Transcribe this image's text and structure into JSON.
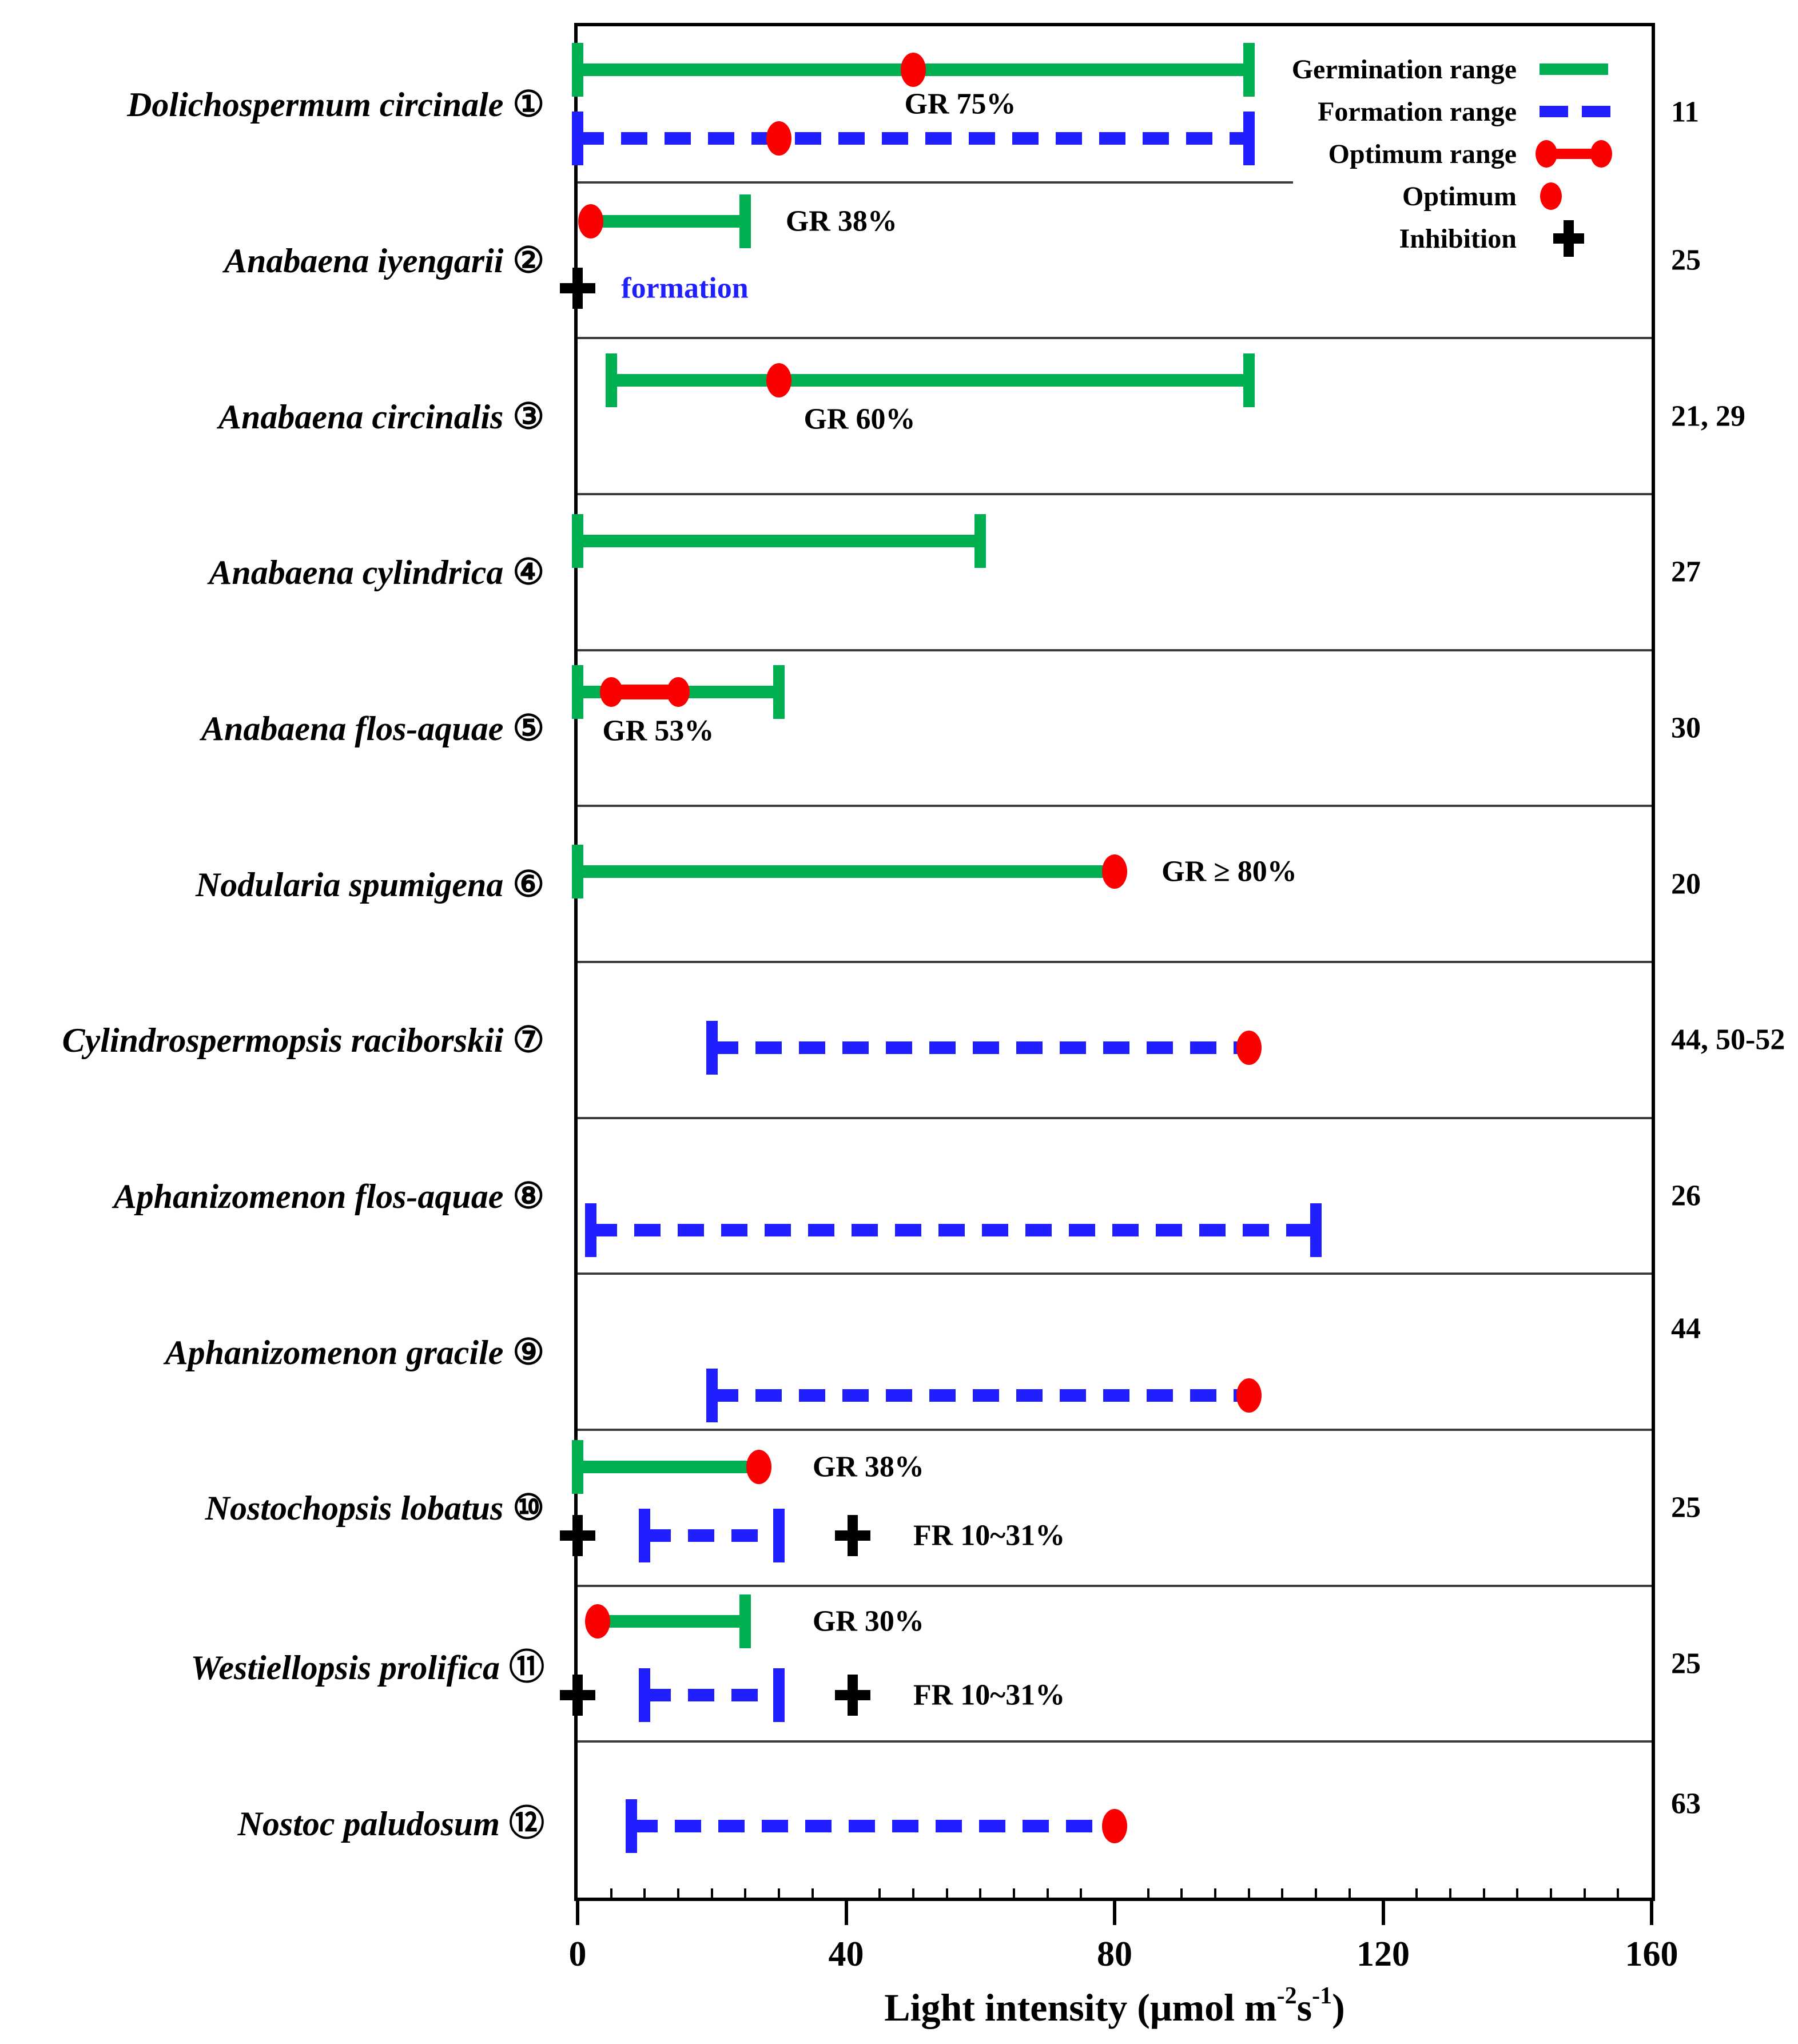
{
  "colors": {
    "green": "#00b050",
    "blue": "#1f1fff",
    "red": "#fb0000",
    "black": "#000000",
    "divider": "#3b3b3b"
  },
  "chart_data": {
    "type": "bar",
    "variant": "horizontal-range-interval",
    "title": "",
    "xlabel": "Light intensity (μmol m-2s-1)",
    "xlabel_parts": {
      "prefix": "Light intensity (μmol m",
      "sup1": "-2",
      "mid": "s",
      "sup2": "-1",
      "suffix": ")"
    },
    "xlim": [
      0,
      160
    ],
    "x_major_ticks": [
      "0",
      "40",
      "80",
      "120",
      "160"
    ],
    "x_major_values": [
      0,
      40,
      80,
      120,
      160
    ],
    "x_minor_step": 5,
    "grid": false,
    "legend": {
      "position": "top-right",
      "items": [
        {
          "label": "Germination range",
          "symbol": "germination"
        },
        {
          "label": "Formation range",
          "symbol": "formation"
        },
        {
          "label": "Optimum range",
          "symbol": "optimum-range"
        },
        {
          "label": "Optimum",
          "symbol": "optimum"
        },
        {
          "label": "Inhibition",
          "symbol": "inhibition"
        }
      ]
    },
    "rows": [
      {
        "species": "Dolichospermum circinale",
        "number": "①",
        "ref": "11",
        "ref_y": 0.55,
        "divider_below": "partial",
        "marks": [
          {
            "kind": "range",
            "style": "germination",
            "from": 0,
            "to": 100,
            "caps": [
              "left",
              "right"
            ],
            "dot": 50,
            "y": 0.28
          },
          {
            "kind": "text",
            "text": "GR 75%",
            "x": 57,
            "y": 0.5,
            "align": "center"
          },
          {
            "kind": "range",
            "style": "formation",
            "from": 0,
            "to": 100,
            "caps": [
              "left",
              "right"
            ],
            "dot": 30,
            "y": 0.72
          }
        ]
      },
      {
        "species": "Anabaena iyengarii",
        "number": "②",
        "ref": "25",
        "ref_y": 0.5,
        "divider_below": "full",
        "marks": [
          {
            "kind": "range",
            "style": "germination",
            "from": 2,
            "to": 25,
            "caps": [
              "right"
            ],
            "dot": 2,
            "y": 0.25
          },
          {
            "kind": "text",
            "text": "GR 38%",
            "x": 31,
            "y": 0.25,
            "align": "left"
          },
          {
            "kind": "plus",
            "x": 0,
            "y": 0.68
          },
          {
            "kind": "text",
            "text": "formation",
            "x": 6.5,
            "y": 0.68,
            "align": "left",
            "color": "blue"
          }
        ]
      },
      {
        "species": "Anabaena circinalis",
        "number": "③",
        "ref": "21, 29",
        "ref_y": 0.5,
        "divider_below": "full",
        "marks": [
          {
            "kind": "range",
            "style": "germination",
            "from": 5,
            "to": 100,
            "caps": [
              "left",
              "right"
            ],
            "dot": 30,
            "y": 0.27
          },
          {
            "kind": "text",
            "text": "GR 60%",
            "x": 42,
            "y": 0.52,
            "align": "center"
          }
        ]
      },
      {
        "species": "Anabaena cylindrica",
        "number": "④",
        "ref": "27",
        "ref_y": 0.5,
        "divider_below": "full",
        "marks": [
          {
            "kind": "range",
            "style": "germination",
            "from": 0,
            "to": 60,
            "caps": [
              "left",
              "right"
            ],
            "y": 0.3
          }
        ]
      },
      {
        "species": "Anabaena flos-aquae",
        "number": "⑤",
        "ref": "30",
        "ref_y": 0.5,
        "divider_below": "full",
        "marks": [
          {
            "kind": "range",
            "style": "germination",
            "from": 0,
            "to": 30,
            "caps": [
              "left",
              "right"
            ],
            "y": 0.27
          },
          {
            "kind": "range",
            "style": "optimum",
            "from": 5,
            "to": 15,
            "end_dots": true,
            "y": 0.27
          },
          {
            "kind": "text",
            "text": "GR 53%",
            "x": 12,
            "y": 0.52,
            "align": "center"
          }
        ]
      },
      {
        "species": "Nodularia spumigena",
        "number": "⑥",
        "ref": "20",
        "ref_y": 0.5,
        "divider_below": "full",
        "marks": [
          {
            "kind": "range",
            "style": "germination",
            "from": 0,
            "to": 80,
            "caps": [
              "left"
            ],
            "dot": 80,
            "y": 0.42
          },
          {
            "kind": "text",
            "text": "GR ≥ 80%",
            "x": 87,
            "y": 0.42,
            "align": "left"
          }
        ]
      },
      {
        "species": "Cylindrospermopsis raciborskii",
        "number": "⑦",
        "ref": "44, 50-52",
        "ref_y": 0.5,
        "divider_below": "full",
        "marks": [
          {
            "kind": "range",
            "style": "formation",
            "from": 20,
            "to": 100,
            "caps": [
              "left"
            ],
            "dot": 100,
            "y": 0.55
          }
        ]
      },
      {
        "species": "Aphanizomenon flos-aquae",
        "number": "⑧",
        "ref": "26",
        "ref_y": 0.5,
        "divider_below": "full",
        "marks": [
          {
            "kind": "range",
            "style": "formation",
            "from": 2,
            "to": 110,
            "caps": [
              "left",
              "right"
            ],
            "y": 0.72
          }
        ]
      },
      {
        "species": "Aphanizomenon gracile",
        "number": "⑨",
        "ref": "44",
        "ref_y": 0.35,
        "divider_below": "full",
        "marks": [
          {
            "kind": "range",
            "style": "formation",
            "from": 20,
            "to": 100,
            "caps": [
              "left"
            ],
            "dot": 100,
            "y": 0.78
          }
        ]
      },
      {
        "species": "Nostochopsis lobatus",
        "number": "⑩",
        "ref": "25",
        "ref_y": 0.5,
        "divider_below": "full",
        "marks": [
          {
            "kind": "range",
            "style": "germination",
            "from": 0,
            "to": 27,
            "caps": [
              "left"
            ],
            "dot": 27,
            "y": 0.24
          },
          {
            "kind": "text",
            "text": "GR 38%",
            "x": 35,
            "y": 0.24,
            "align": "left"
          },
          {
            "kind": "plus",
            "x": 0,
            "y": 0.68
          },
          {
            "kind": "range",
            "style": "formation",
            "from": 10,
            "to": 30,
            "caps": [
              "left",
              "right"
            ],
            "y": 0.68
          },
          {
            "kind": "plus",
            "x": 41,
            "y": 0.68
          },
          {
            "kind": "text",
            "text": "FR 10~31%",
            "x": 50,
            "y": 0.68,
            "align": "left"
          }
        ]
      },
      {
        "species": "Westiellopsis prolifica",
        "number": "⑪",
        "ref": "25",
        "ref_y": 0.5,
        "divider_below": "full",
        "marks": [
          {
            "kind": "range",
            "style": "germination",
            "from": 3,
            "to": 25,
            "caps": [
              "right"
            ],
            "dot": 3,
            "y": 0.23
          },
          {
            "kind": "text",
            "text": "GR 30%",
            "x": 35,
            "y": 0.23,
            "align": "left"
          },
          {
            "kind": "plus",
            "x": 0,
            "y": 0.7
          },
          {
            "kind": "range",
            "style": "formation",
            "from": 10,
            "to": 30,
            "caps": [
              "left",
              "right"
            ],
            "y": 0.7
          },
          {
            "kind": "plus",
            "x": 41,
            "y": 0.7
          },
          {
            "kind": "text",
            "text": "FR 10~31%",
            "x": 50,
            "y": 0.7,
            "align": "left"
          }
        ]
      },
      {
        "species": "Nostoc paludosum",
        "number": "⑫",
        "ref": "63",
        "ref_y": 0.4,
        "divider_below": "none",
        "marks": [
          {
            "kind": "range",
            "style": "formation",
            "from": 8,
            "to": 80,
            "caps": [
              "left"
            ],
            "dot": 80,
            "y": 0.54
          }
        ]
      }
    ]
  }
}
